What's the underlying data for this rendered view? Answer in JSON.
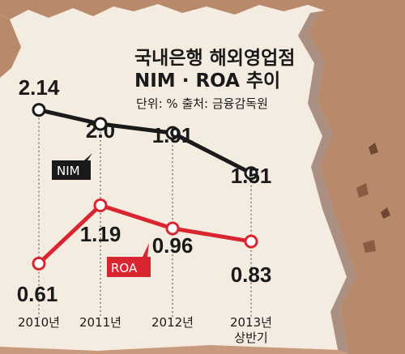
{
  "title_lines": [
    "국내은행 해외영업점",
    "NIM · ROA 추이"
  ],
  "subtitle": "단위: % 출처: 금융감독원",
  "colors": {
    "background": "#f4ece1",
    "nim": "#1a1a1a",
    "roa": "#d9252f",
    "rock": "#b9896c",
    "rock_dark": "#6d4634"
  },
  "chart_data": {
    "type": "line",
    "categories": [
      "2010년",
      "2011년",
      "2012년",
      "2013년\n상반기"
    ],
    "series": [
      {
        "name": "NIM",
        "values": [
          2.14,
          2.0,
          1.91,
          1.51
        ],
        "labels": [
          "2.14",
          "2.0",
          "1.91",
          "1.51"
        ],
        "color": "#1a1a1a"
      },
      {
        "name": "ROA",
        "values": [
          0.61,
          1.19,
          0.96,
          0.83
        ],
        "labels": [
          "0.61",
          "1.19",
          "0.96",
          "0.83"
        ],
        "color": "#d9252f"
      }
    ],
    "title": "국내은행 해외영업점 NIM · ROA 추이",
    "xlabel": "",
    "ylabel": "",
    "units": "%",
    "grid": false,
    "legend": "inline"
  }
}
